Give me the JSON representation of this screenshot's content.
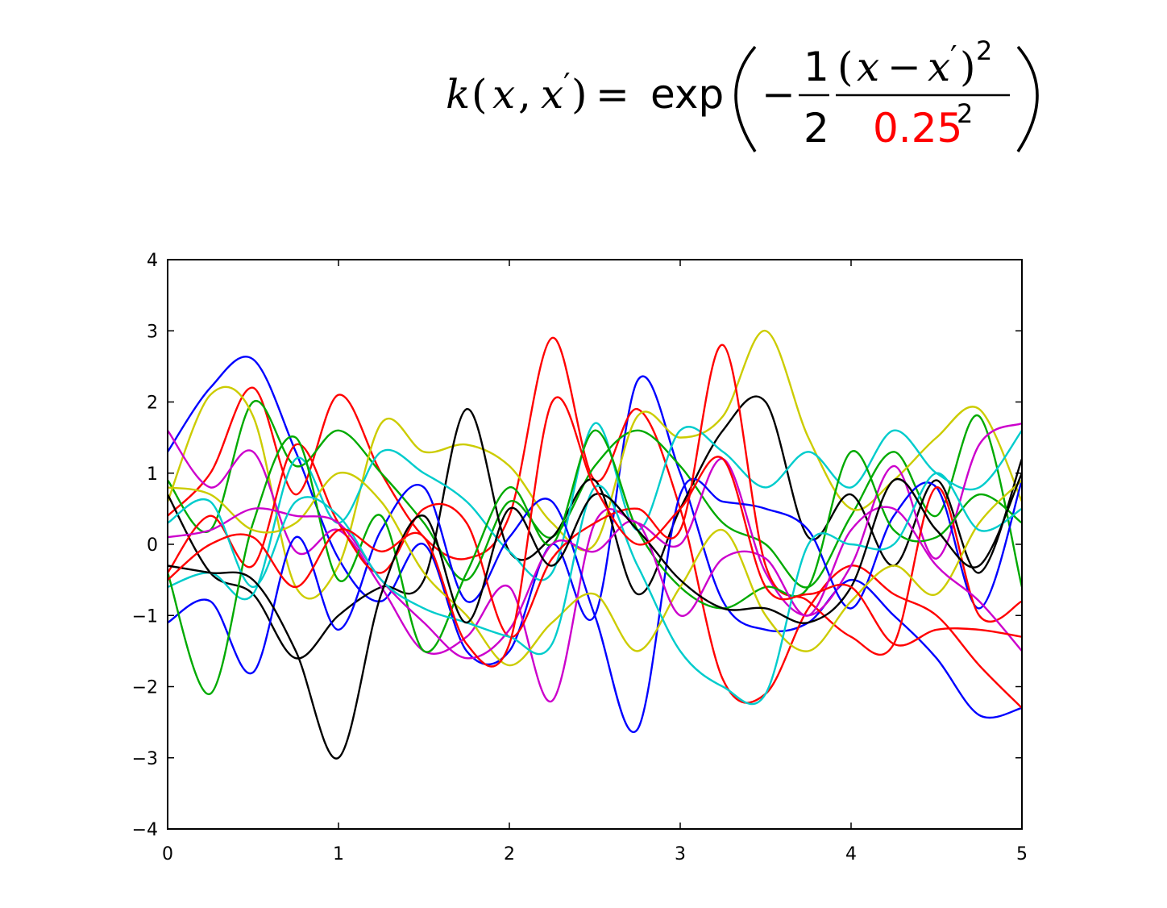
{
  "formula": {
    "lhs_k": "k",
    "lhs_open": "(",
    "lhs_x": "x",
    "lhs_comma": ",",
    "lhs_xp": "x",
    "lhs_prime": "′",
    "lhs_close": ")",
    "equals": "=",
    "exp": "exp",
    "minus": "−",
    "frac1_num": "1",
    "frac1_den": "2",
    "num_open": "(",
    "num_x": "x",
    "num_minus": "−",
    "num_xp": "x",
    "num_prime": "′",
    "num_close": ")",
    "num_exp": "2",
    "den_value": "0.25",
    "den_exp": "2",
    "highlight_color": "#ff0000"
  },
  "chart_data": {
    "type": "line",
    "title": "",
    "xlabel": "",
    "ylabel": "",
    "xlim": [
      0,
      5
    ],
    "ylim": [
      -4,
      4
    ],
    "grid": false,
    "legend": "none",
    "xticks": [
      "0",
      "1",
      "2",
      "3",
      "4",
      "5"
    ],
    "yticks": [
      "4",
      "3",
      "2",
      "1",
      "0",
      "−1",
      "−2",
      "−3",
      "−4"
    ],
    "x": [
      0,
      0.25,
      0.5,
      0.75,
      1,
      1.25,
      1.5,
      1.75,
      2,
      2.25,
      2.5,
      2.75,
      3,
      3.25,
      3.5,
      3.75,
      4,
      4.25,
      4.5,
      4.75,
      5
    ],
    "series": [
      {
        "color": "#0000ff",
        "values": [
          1.3,
          2.2,
          2.6,
          1.3,
          -0.2,
          -0.8,
          0.0,
          -1.5,
          -1.5,
          0.0,
          -1.0,
          2.3,
          1.0,
          -0.8,
          -1.2,
          -1.1,
          -0.5,
          -1.0,
          -1.6,
          -2.4,
          -2.3
        ]
      },
      {
        "color": "#ff0000",
        "values": [
          0.4,
          1.0,
          2.2,
          0.7,
          2.1,
          1.0,
          0.1,
          -0.2,
          0.4,
          2.9,
          0.9,
          1.9,
          0.5,
          -1.9,
          -2.1,
          -0.9,
          -0.3,
          -0.7,
          -1.0,
          -1.7,
          -2.3
        ]
      },
      {
        "color": "#00aa00",
        "values": [
          0.9,
          0.2,
          2.0,
          1.1,
          1.6,
          1.0,
          0.3,
          -0.5,
          0.6,
          0.1,
          1.1,
          1.6,
          1.1,
          0.3,
          0.0,
          -0.6,
          0.4,
          1.3,
          0.4,
          1.8,
          -0.6
        ]
      },
      {
        "color": "#cccc00",
        "values": [
          0.6,
          2.1,
          1.8,
          -0.6,
          -0.3,
          1.7,
          1.3,
          1.4,
          1.1,
          0.3,
          0.0,
          1.8,
          1.5,
          1.8,
          3.0,
          1.5,
          0.5,
          0.9,
          1.5,
          1.9,
          0.6
        ]
      },
      {
        "color": "#000000",
        "values": [
          0.7,
          -0.4,
          -0.7,
          -1.6,
          -1.0,
          -0.6,
          -0.5,
          1.9,
          -0.1,
          0.1,
          0.9,
          -0.7,
          0.5,
          1.6,
          2.0,
          0.1,
          0.7,
          -0.3,
          0.9,
          -0.4,
          1.2
        ]
      },
      {
        "color": "#00cccc",
        "values": [
          -0.6,
          -0.4,
          -0.7,
          1.2,
          0.3,
          1.3,
          1.0,
          0.6,
          -0.1,
          -0.4,
          1.7,
          0.2,
          1.6,
          1.3,
          0.8,
          1.3,
          0.8,
          1.6,
          1.0,
          0.8,
          1.6
        ]
      },
      {
        "color": "#cc00cc",
        "values": [
          1.6,
          0.8,
          1.3,
          -0.1,
          0.2,
          -0.6,
          -1.5,
          -1.3,
          -0.6,
          -2.2,
          0.3,
          0.3,
          0.0,
          1.2,
          -0.4,
          -1.0,
          -0.3,
          1.1,
          -0.2,
          1.4,
          1.7
        ]
      },
      {
        "color": "#0000ff",
        "values": [
          -1.1,
          -0.8,
          -1.8,
          0.1,
          -1.2,
          0.2,
          0.8,
          -0.8,
          0.1,
          0.6,
          -1.0,
          -2.6,
          0.7,
          0.6,
          0.5,
          0.2,
          -0.9,
          0.4,
          0.8,
          -0.9,
          0.9
        ]
      },
      {
        "color": "#ff0000",
        "values": [
          -0.4,
          0.4,
          -0.3,
          1.4,
          0.3,
          -0.4,
          0.5,
          0.3,
          -1.3,
          -0.2,
          0.3,
          0.5,
          0.2,
          2.8,
          -0.3,
          -0.8,
          -1.3,
          -1.4,
          0.8,
          -1.0,
          -0.8
        ]
      },
      {
        "color": "#00aa00",
        "values": [
          -0.4,
          -2.1,
          0.3,
          1.5,
          -0.5,
          0.4,
          -1.5,
          -0.4,
          0.8,
          0.0,
          1.6,
          0.2,
          -0.6,
          -0.9,
          -0.6,
          -0.6,
          1.3,
          0.2,
          0.1,
          0.7,
          0.3
        ]
      },
      {
        "color": "#cccc00",
        "values": [
          0.8,
          0.7,
          0.2,
          0.3,
          1.0,
          0.6,
          -0.4,
          -1.0,
          -1.7,
          -1.1,
          -0.7,
          -1.5,
          -0.6,
          0.2,
          -1.0,
          -1.5,
          -0.8,
          -0.3,
          -0.7,
          0.3,
          0.9
        ]
      },
      {
        "color": "#cc00cc",
        "values": [
          0.1,
          0.2,
          0.5,
          0.4,
          0.3,
          -0.5,
          -1.1,
          -1.6,
          -1.2,
          0.0,
          -0.1,
          0.3,
          -1.0,
          -0.2,
          -0.2,
          -1.0,
          0.2,
          0.5,
          -0.3,
          -0.8,
          -1.5
        ]
      },
      {
        "color": "#00cccc",
        "values": [
          0.3,
          0.6,
          -0.6,
          0.6,
          0.4,
          -0.5,
          -0.9,
          -1.1,
          -1.3,
          -1.4,
          0.8,
          -0.3,
          -1.5,
          -2.0,
          -2.1,
          0.0,
          0.0,
          0.0,
          1.0,
          0.2,
          0.5
        ]
      },
      {
        "color": "#000000",
        "values": [
          -0.3,
          -0.4,
          -0.5,
          -1.5,
          -3.0,
          -0.7,
          0.4,
          -1.1,
          0.5,
          -0.3,
          0.7,
          0.2,
          -0.5,
          -0.9,
          -0.9,
          -1.1,
          -0.6,
          0.9,
          0.2,
          -0.3,
          1.0
        ]
      },
      {
        "color": "#ff0000",
        "values": [
          -0.5,
          0.0,
          0.1,
          -0.6,
          0.2,
          -0.1,
          0.1,
          -1.4,
          -1.4,
          2.0,
          0.8,
          0.0,
          0.5,
          1.2,
          -0.6,
          -0.7,
          -0.6,
          -1.4,
          -1.2,
          -1.2,
          -1.3
        ]
      }
    ]
  }
}
